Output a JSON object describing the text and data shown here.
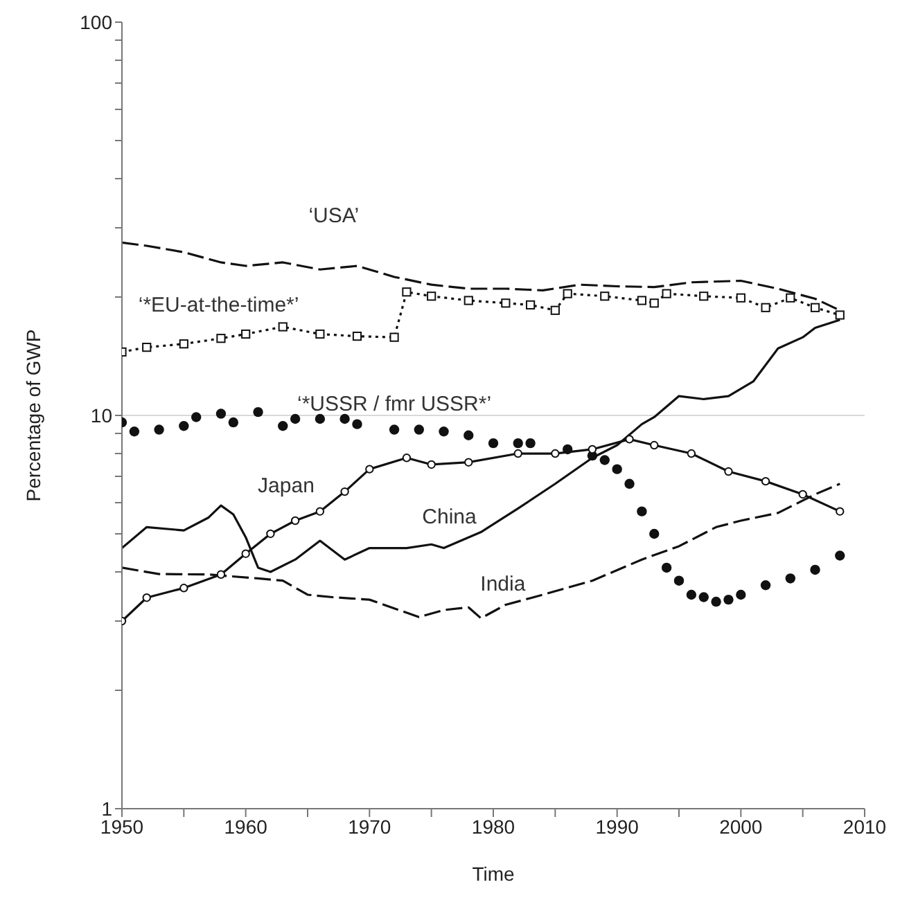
{
  "chart_data": {
    "type": "line",
    "xlabel": "Time",
    "ylabel": "Percentage of GWP",
    "log": "y",
    "xlim": [
      1950,
      2010
    ],
    "xticks": [
      1950,
      {
        "value": 1955,
        "label": null
      },
      1960,
      {
        "value": 1965,
        "label": null
      },
      1970,
      {
        "value": 1975,
        "label": null
      },
      1980,
      {
        "value": 1985,
        "label": null
      },
      1990,
      {
        "value": 1995,
        "label": null
      },
      2000,
      {
        "value": 2005,
        "label": null
      },
      2010
    ],
    "ylim": [
      1,
      100
    ],
    "yticks": [
      1,
      {
        "value": 2,
        "label": null
      },
      {
        "value": 3,
        "label": null
      },
      {
        "value": 4,
        "label": null
      },
      {
        "value": 5,
        "label": null
      },
      {
        "value": 6,
        "label": null
      },
      {
        "value": 7,
        "label": null
      },
      {
        "value": 8,
        "label": null
      },
      {
        "value": 9,
        "label": null
      },
      10,
      {
        "value": 20,
        "label": null
      },
      {
        "value": 30,
        "label": null
      },
      {
        "value": 40,
        "label": null
      },
      {
        "value": 50,
        "label": null
      },
      {
        "value": 60,
        "label": null
      },
      {
        "value": 70,
        "label": null
      },
      {
        "value": 80,
        "label": null
      },
      {
        "value": 90,
        "label": null
      },
      100
    ],
    "ref_lines": [
      {
        "axis": "y",
        "value": 10,
        "color": "#d9d9d9"
      }
    ],
    "series": [
      {
        "name": "‘USA’",
        "color": "#111111",
        "line_style": "dashed",
        "x": [
          1950,
          1952,
          1955,
          1958,
          1960,
          1963,
          1966,
          1969,
          1972,
          1975,
          1978,
          1981,
          1984,
          1987,
          1990,
          1993,
          1996,
          2000,
          2003,
          2006,
          2008
        ],
        "values": [
          27.5,
          27,
          26,
          24.5,
          24,
          24.5,
          23.5,
          24,
          22.5,
          21.5,
          21,
          21,
          20.8,
          21.5,
          21.3,
          21.2,
          21.8,
          22,
          21,
          19.8,
          18.5
        ]
      },
      {
        "name": "‘*EU-at-the-time*’",
        "color": "#111111",
        "line_style": "dotted",
        "marker": "square",
        "x": [
          1950,
          1952,
          1955,
          1958,
          1960,
          1963,
          1966,
          1969,
          1972,
          1973,
          1975,
          1978,
          1981,
          1983,
          1985,
          1986,
          1989,
          1992,
          1993,
          1994,
          1997,
          2000,
          2002,
          2004,
          2006,
          2008
        ],
        "values": [
          14.5,
          14.9,
          15.2,
          15.7,
          16.1,
          16.8,
          16.1,
          15.9,
          15.8,
          20.6,
          20.1,
          19.6,
          19.3,
          19.1,
          18.5,
          20.4,
          20.1,
          19.6,
          19.3,
          20.4,
          20.1,
          19.9,
          18.8,
          19.9,
          18.8,
          18
        ]
      },
      {
        "name": "‘*USSR / fmr USSR*’",
        "type": "scatter",
        "color": "#111111",
        "marker": "circle",
        "x": [
          1950,
          1951,
          1953,
          1955,
          1956,
          1958,
          1959,
          1961,
          1963,
          1964,
          1966,
          1968,
          1969,
          1972,
          1974,
          1976,
          1978,
          1980,
          1982,
          1983,
          1986,
          1988,
          1989,
          1990,
          1991,
          1992,
          1993,
          1994,
          1995,
          1996,
          1997,
          1998,
          1999,
          2000,
          2002,
          2004,
          2006,
          2008
        ],
        "values": [
          9.6,
          9.1,
          9.2,
          9.4,
          9.9,
          10.1,
          9.6,
          10.2,
          9.4,
          9.8,
          9.8,
          9.8,
          9.5,
          9.2,
          9.2,
          9.1,
          8.9,
          8.5,
          8.5,
          8.5,
          8.2,
          7.9,
          7.7,
          7.3,
          6.7,
          5.7,
          5,
          4.1,
          3.8,
          3.5,
          3.45,
          3.36,
          3.4,
          3.5,
          3.7,
          3.85,
          4.05,
          4.4
        ]
      },
      {
        "name": "Japan",
        "color": "#111111",
        "line_style": "solid",
        "marker": "circle",
        "x": [
          1950,
          1952,
          1955,
          1958,
          1960,
          1962,
          1964,
          1966,
          1968,
          1970,
          1973,
          1975,
          1978,
          1982,
          1985,
          1988,
          1991,
          1993,
          1996,
          1999,
          2002,
          2005,
          2008
        ],
        "values": [
          3,
          3.44,
          3.64,
          3.94,
          4.45,
          5,
          5.4,
          5.7,
          6.4,
          7.3,
          7.8,
          7.5,
          7.6,
          8,
          8,
          8.2,
          8.7,
          8.4,
          8,
          7.2,
          6.8,
          6.3,
          5.7
        ]
      },
      {
        "name": "China",
        "color": "#111111",
        "line_style": "solid",
        "x": [
          1950,
          1952,
          1955,
          1957,
          1958,
          1959,
          1960,
          1961,
          1962,
          1964,
          1966,
          1968,
          1970,
          1973,
          1975,
          1976,
          1979,
          1982,
          1985,
          1988,
          1990,
          1992,
          1993,
          1995,
          1997,
          1999,
          2001,
          2003,
          2005,
          2006,
          2008
        ],
        "values": [
          4.6,
          5.2,
          5.1,
          5.5,
          5.9,
          5.6,
          4.9,
          4.1,
          4,
          4.3,
          4.8,
          4.3,
          4.6,
          4.6,
          4.7,
          4.6,
          5.05,
          5.8,
          6.7,
          7.8,
          8.4,
          9.5,
          9.9,
          11.2,
          11,
          11.2,
          12.2,
          14.8,
          15.8,
          16.7,
          17.5
        ]
      },
      {
        "name": "India",
        "color": "#111111",
        "line_style": "dashed",
        "x": [
          1950,
          1953,
          1957,
          1961,
          1963,
          1965,
          1967,
          1970,
          1974,
          1976,
          1978,
          1979,
          1981,
          1984,
          1988,
          1992,
          1995,
          1998,
          2000,
          2003,
          2006,
          2008
        ],
        "values": [
          4.1,
          3.95,
          3.94,
          3.85,
          3.8,
          3.5,
          3.45,
          3.4,
          3.07,
          3.2,
          3.25,
          3.05,
          3.3,
          3.5,
          3.8,
          4.3,
          4.65,
          5.2,
          5.4,
          5.65,
          6.3,
          6.7
        ]
      }
    ]
  }
}
